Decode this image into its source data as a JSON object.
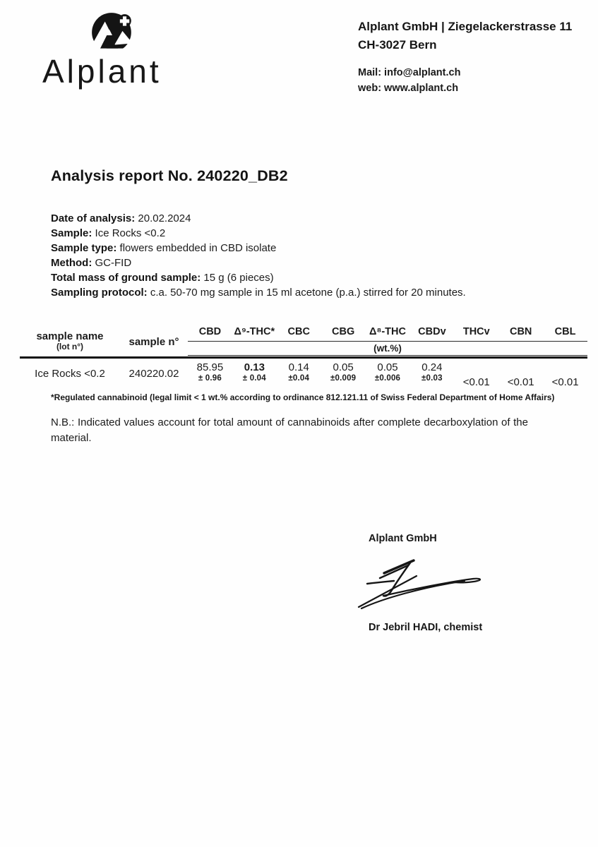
{
  "colors": {
    "text": "#1c1c1c",
    "line": "#0c0c0c",
    "background": "#fefefe"
  },
  "logo": {
    "icon": "mountain-swiss-cross-icon",
    "text": "Alplant"
  },
  "header": {
    "address_line1": "Alplant GmbH | Ziegelackerstrasse 11",
    "address_line2": "CH-3027 Bern",
    "mail": "Mail: info@alplant.ch",
    "web": "web: www.alplant.ch"
  },
  "title": "Analysis report No. 240220_DB2",
  "details": [
    {
      "label": "Date of analysis:",
      "value": "20.02.2024"
    },
    {
      "label": "Sample:",
      "value": "Ice Rocks <0.2"
    },
    {
      "label": "Sample type:",
      "value": "flowers embedded in CBD isolate"
    },
    {
      "label": "Method:",
      "value": "GC-FID"
    },
    {
      "label": "Total mass of ground sample:",
      "value": "15 g (6 pieces)"
    },
    {
      "label": "Sampling protocol:",
      "value": "c.a. 50-70 mg sample in 15 ml acetone (p.a.) stirred for 20 minutes."
    }
  ],
  "table": {
    "col1_header_line1": "sample name",
    "col1_header_line2": "(lot n°)",
    "col2_header": "sample n°",
    "analyte_headers": [
      "CBD",
      "Δ⁹-THC*",
      "CBC",
      "CBG",
      "Δ⁸-THC",
      "CBDv",
      "THCv",
      "CBN",
      "CBL"
    ],
    "unit_label": "(wt.%)",
    "row": {
      "sample_name": "Ice Rocks <0.2",
      "sample_no": "240220.02",
      "values": [
        {
          "value": "85.95",
          "uncertainty": "± 0.96",
          "bold": false
        },
        {
          "value": "0.13",
          "uncertainty": "± 0.04",
          "bold": true
        },
        {
          "value": "0.14",
          "uncertainty": "±0.04",
          "bold": false
        },
        {
          "value": "0.05",
          "uncertainty": "±0.009",
          "bold": false
        },
        {
          "value": "0.05",
          "uncertainty": "±0.006",
          "bold": false
        },
        {
          "value": "0.24",
          "uncertainty": "±0.03",
          "bold": false
        },
        {
          "value": "<0.01",
          "uncertainty": "",
          "bold": false
        },
        {
          "value": "<0.01",
          "uncertainty": "",
          "bold": false
        },
        {
          "value": "<0.01",
          "uncertainty": "",
          "bold": false
        }
      ]
    },
    "footnote": "*Regulated cannabinoid (legal limit < 1 wt.% according to ordinance 812.121.11 of Swiss Federal Department of Home Affairs)"
  },
  "note": "N.B.: Indicated values account for total amount of cannabinoids after complete decarboxylation of the material.",
  "signature": {
    "company": "Alplant GmbH",
    "signer": "Dr Jebril HADI, chemist"
  }
}
